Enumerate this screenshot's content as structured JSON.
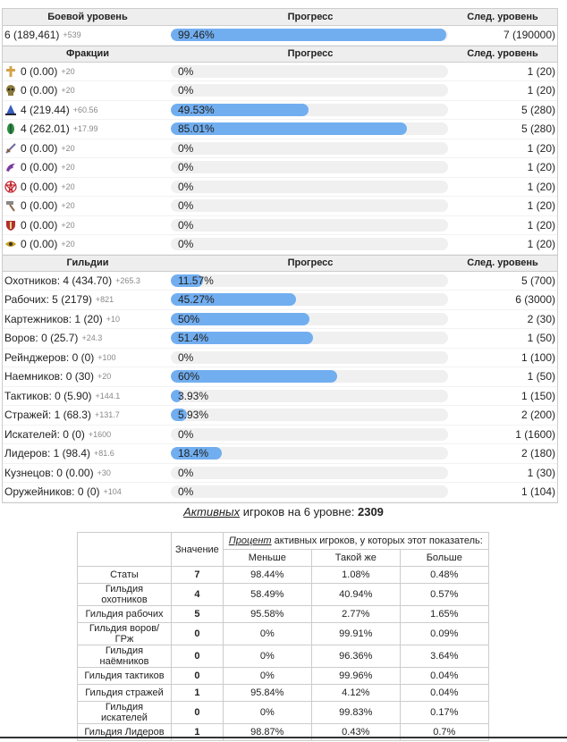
{
  "combat": {
    "headers": {
      "name": "Боевой уровень",
      "progress": "Прогресс",
      "next": "След. уровень"
    },
    "row": {
      "name": "6 (189,461)",
      "inc": "+539",
      "pct": "99.46%",
      "fill": 0.9946,
      "next": "7 (190000)"
    }
  },
  "factions": {
    "headers": {
      "name": "Фракции",
      "progress": "Прогресс",
      "next": "След. уровень"
    },
    "rows": [
      {
        "icon": "cross-icon",
        "color": "#d4a24a",
        "name": "0 (0.00)",
        "inc": "+20",
        "pct": "0%",
        "fill": 0,
        "next": "1 (20)"
      },
      {
        "icon": "skull-icon",
        "color": "#8a7a3a",
        "name": "0 (0.00)",
        "inc": "+20",
        "pct": "0%",
        "fill": 0,
        "next": "1 (20)"
      },
      {
        "icon": "wizard-hat-icon",
        "color": "#3a5ec0",
        "name": "4 (219.44)",
        "inc": "+60.56",
        "pct": "49.53%",
        "fill": 0.4953,
        "next": "5 (280)"
      },
      {
        "icon": "leaf-icon",
        "color": "#2e8b3e",
        "name": "4 (262.01)",
        "inc": "+17.99",
        "pct": "85.01%",
        "fill": 0.8501,
        "next": "5 (280)"
      },
      {
        "icon": "sword-icon",
        "color": "#6b6b9b",
        "name": "0 (0.00)",
        "inc": "+20",
        "pct": "0%",
        "fill": 0,
        "next": "1 (20)"
      },
      {
        "icon": "dragon-icon",
        "color": "#7a3a9b",
        "name": "0 (0.00)",
        "inc": "+20",
        "pct": "0%",
        "fill": 0,
        "next": "1 (20)"
      },
      {
        "icon": "pentagram-icon",
        "color": "#c0202a",
        "name": "0 (0.00)",
        "inc": "+20",
        "pct": "0%",
        "fill": 0,
        "next": "1 (20)"
      },
      {
        "icon": "hammer-icon",
        "color": "#8a6a4a",
        "name": "0 (0.00)",
        "inc": "+20",
        "pct": "0%",
        "fill": 0,
        "next": "1 (20)"
      },
      {
        "icon": "shield-icon",
        "color": "#b03030",
        "name": "0 (0.00)",
        "inc": "+20",
        "pct": "0%",
        "fill": 0,
        "next": "1 (20)"
      },
      {
        "icon": "eye-icon",
        "color": "#c8a020",
        "name": "0 (0.00)",
        "inc": "+20",
        "pct": "0%",
        "fill": 0,
        "next": "1 (20)"
      }
    ]
  },
  "guilds": {
    "headers": {
      "name": "Гильдии",
      "progress": "Прогресс",
      "next": "След. уровень"
    },
    "rows": [
      {
        "name": "Охотников: 4 (434.70)",
        "inc": "+265.3",
        "pct": "11.57%",
        "fill": 0.1157,
        "next": "5 (700)"
      },
      {
        "name": "Рабочих: 5 (2179)",
        "inc": "+821",
        "pct": "45.27%",
        "fill": 0.4527,
        "next": "6 (3000)"
      },
      {
        "name": "Картежников: 1 (20)",
        "inc": "+10",
        "pct": "50%",
        "fill": 0.5,
        "next": "2 (30)"
      },
      {
        "name": "Воров: 0 (25.7)",
        "inc": "+24.3",
        "pct": "51.4%",
        "fill": 0.514,
        "next": "1 (50)"
      },
      {
        "name": "Рейнджеров: 0 (0)",
        "inc": "+100",
        "pct": "0%",
        "fill": 0,
        "next": "1 (100)"
      },
      {
        "name": "Наемников: 0 (30)",
        "inc": "+20",
        "pct": "60%",
        "fill": 0.6,
        "next": "1 (50)"
      },
      {
        "name": "Тактиков: 0 (5.90)",
        "inc": "+144.1",
        "pct": "3.93%",
        "fill": 0.0393,
        "next": "1 (150)"
      },
      {
        "name": "Стражей: 1 (68.3)",
        "inc": "+131.7",
        "pct": "5.93%",
        "fill": 0.0593,
        "next": "2 (200)"
      },
      {
        "name": "Искателей: 0 (0)",
        "inc": "+1600",
        "pct": "0%",
        "fill": 0,
        "next": "1 (1600)"
      },
      {
        "name": "Лидеров: 1 (98.4)",
        "inc": "+81.6",
        "pct": "18.4%",
        "fill": 0.184,
        "next": "2 (180)"
      },
      {
        "name": "Кузнецов: 0 (0.00)",
        "inc": "+30",
        "pct": "0%",
        "fill": 0,
        "next": "1 (30)"
      },
      {
        "name": "Оружейников: 0 (0)",
        "inc": "+104",
        "pct": "0%",
        "fill": 0,
        "next": "1 (104)"
      }
    ]
  },
  "summary": {
    "link": "Активных",
    "text": " игроков на 6 уровне: ",
    "count": "2309"
  },
  "stats_table": {
    "value_header": "Значение",
    "pct_link": "Процент",
    "pct_header_rest": " активных игроков, у которых этот показатель:",
    "cols": [
      "Меньше",
      "Такой же",
      "Больше"
    ],
    "rows": [
      {
        "name": "Статы",
        "value": "7",
        "less": "98.44%",
        "same": "1.08%",
        "more": "0.48%"
      },
      {
        "name": "Гильдия охотников",
        "value": "4",
        "less": "58.49%",
        "same": "40.94%",
        "more": "0.57%"
      },
      {
        "name": "Гильдия рабочих",
        "value": "5",
        "less": "95.58%",
        "same": "2.77%",
        "more": "1.65%"
      },
      {
        "name": "Гильдия воров/ГРж",
        "value": "0",
        "less": "0%",
        "same": "99.91%",
        "more": "0.09%"
      },
      {
        "name": "Гильдия наёмников",
        "value": "0",
        "less": "0%",
        "same": "96.36%",
        "more": "3.64%"
      },
      {
        "name": "Гильдия тактиков",
        "value": "0",
        "less": "0%",
        "same": "99.96%",
        "more": "0.04%"
      },
      {
        "name": "Гильдия стражей",
        "value": "1",
        "less": "95.84%",
        "same": "4.12%",
        "more": "0.04%"
      },
      {
        "name": "Гильдия искателей",
        "value": "0",
        "less": "0%",
        "same": "99.83%",
        "more": "0.17%"
      },
      {
        "name": "Гильдия Лидеров",
        "value": "1",
        "less": "98.87%",
        "same": "0.43%",
        "more": "0.7%"
      }
    ]
  },
  "colors": {
    "bar_fill": "#71aef0",
    "bar_track": "#f0f0f0",
    "header_bg": "#eeeeee"
  }
}
